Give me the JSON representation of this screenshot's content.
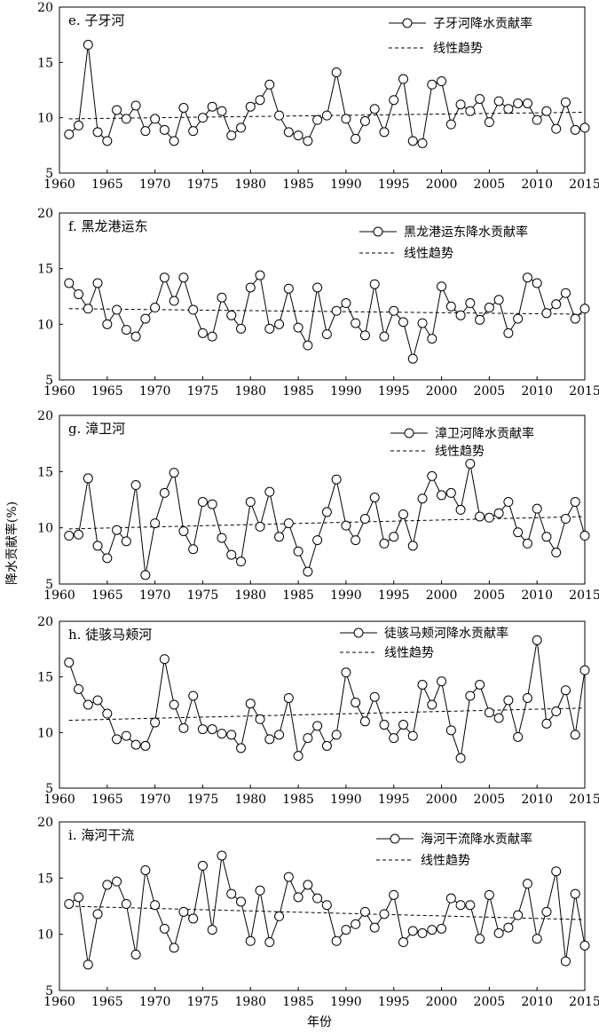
{
  "figure": {
    "ylabel": "降水贡献率(%)",
    "xlabel": "年份"
  },
  "chart_data": [
    {
      "type": "line",
      "title": "e. 子牙河",
      "xlim": [
        1960,
        2015
      ],
      "ylim": [
        5,
        20
      ],
      "xticks": [
        1960,
        1965,
        1970,
        1975,
        1980,
        1985,
        1990,
        1995,
        2000,
        2005,
        2010,
        2015
      ],
      "yticks": [
        5,
        10,
        15,
        20
      ],
      "series": [
        {
          "name": "子牙河降水贡献率",
          "x": [
            1961,
            1962,
            1963,
            1964,
            1965,
            1966,
            1967,
            1968,
            1969,
            1970,
            1971,
            1972,
            1973,
            1974,
            1975,
            1976,
            1977,
            1978,
            1979,
            1980,
            1981,
            1982,
            1983,
            1984,
            1985,
            1986,
            1987,
            1988,
            1989,
            1990,
            1991,
            1992,
            1993,
            1994,
            1995,
            1996,
            1997,
            1998,
            1999,
            2000,
            2001,
            2002,
            2003,
            2004,
            2005,
            2006,
            2007,
            2008,
            2009,
            2010,
            2011,
            2012,
            2013,
            2014,
            2015
          ],
          "values": [
            8.5,
            9.3,
            16.6,
            8.7,
            7.9,
            10.7,
            9.9,
            11.1,
            8.8,
            9.9,
            8.9,
            7.9,
            10.9,
            8.8,
            10.0,
            11.0,
            10.6,
            8.4,
            9.1,
            11.0,
            11.6,
            13.0,
            10.2,
            8.7,
            8.4,
            7.9,
            9.8,
            10.2,
            14.1,
            9.9,
            8.1,
            9.7,
            10.8,
            8.7,
            11.6,
            13.5,
            7.9,
            7.7,
            13.0,
            13.3,
            9.4,
            11.2,
            10.6,
            11.7,
            9.6,
            11.5,
            10.8,
            11.3,
            11.3,
            9.8,
            10.6,
            9.0,
            11.4,
            8.9,
            9.1
          ]
        },
        {
          "name": "线性趋势",
          "x": [
            1961,
            2015
          ],
          "values": [
            9.9,
            10.5
          ]
        }
      ]
    },
    {
      "type": "line",
      "title": "f. 黑龙港运东",
      "xlim": [
        1960,
        2015
      ],
      "ylim": [
        5,
        20
      ],
      "xticks": [
        1960,
        1965,
        1970,
        1975,
        1980,
        1985,
        1990,
        1995,
        2000,
        2005,
        2010,
        2015
      ],
      "yticks": [
        5,
        10,
        15,
        20
      ],
      "series": [
        {
          "name": "黑龙港运东降水贡献率",
          "x": [
            1961,
            1962,
            1963,
            1964,
            1965,
            1966,
            1967,
            1968,
            1969,
            1970,
            1971,
            1972,
            1973,
            1974,
            1975,
            1976,
            1977,
            1978,
            1979,
            1980,
            1981,
            1982,
            1983,
            1984,
            1985,
            1986,
            1987,
            1988,
            1989,
            1990,
            1991,
            1992,
            1993,
            1994,
            1995,
            1996,
            1997,
            1998,
            1999,
            2000,
            2001,
            2002,
            2003,
            2004,
            2005,
            2006,
            2007,
            2008,
            2009,
            2010,
            2011,
            2012,
            2013,
            2014,
            2015
          ],
          "values": [
            13.7,
            12.7,
            11.4,
            13.7,
            10.0,
            11.3,
            9.5,
            8.9,
            10.5,
            11.5,
            14.2,
            12.1,
            14.2,
            11.3,
            9.2,
            8.9,
            12.4,
            10.8,
            9.6,
            13.3,
            14.4,
            9.6,
            10.0,
            13.2,
            9.7,
            8.1,
            13.3,
            9.1,
            11.2,
            11.9,
            10.1,
            9.0,
            13.6,
            8.9,
            11.2,
            10.2,
            6.9,
            10.1,
            8.7,
            13.4,
            11.6,
            10.8,
            11.9,
            10.4,
            11.5,
            12.2,
            9.2,
            10.5,
            14.2,
            13.7,
            11.0,
            11.8,
            12.8,
            10.5,
            11.4
          ]
        },
        {
          "name": "线性趋势",
          "x": [
            1961,
            2015
          ],
          "values": [
            11.4,
            10.9
          ]
        }
      ]
    },
    {
      "type": "line",
      "title": "g. 漳卫河",
      "xlim": [
        1960,
        2015
      ],
      "ylim": [
        5,
        20
      ],
      "xticks": [
        1960,
        1965,
        1970,
        1975,
        1980,
        1985,
        1990,
        1995,
        2000,
        2005,
        2010,
        2015
      ],
      "yticks": [
        5,
        10,
        15,
        20
      ],
      "series": [
        {
          "name": "漳卫河降水贡献率",
          "x": [
            1961,
            1962,
            1963,
            1964,
            1965,
            1966,
            1967,
            1968,
            1969,
            1970,
            1971,
            1972,
            1973,
            1974,
            1975,
            1976,
            1977,
            1978,
            1979,
            1980,
            1981,
            1982,
            1983,
            1984,
            1985,
            1986,
            1987,
            1988,
            1989,
            1990,
            1991,
            1992,
            1993,
            1994,
            1995,
            1996,
            1997,
            1998,
            1999,
            2000,
            2001,
            2002,
            2003,
            2004,
            2005,
            2006,
            2007,
            2008,
            2009,
            2010,
            2011,
            2012,
            2013,
            2014,
            2015
          ],
          "values": [
            9.3,
            9.4,
            14.4,
            8.4,
            7.3,
            9.8,
            8.8,
            13.8,
            5.8,
            10.4,
            13.1,
            14.9,
            9.7,
            8.1,
            12.3,
            12.1,
            9.1,
            7.6,
            7.0,
            12.3,
            10.1,
            13.2,
            9.2,
            10.4,
            7.9,
            6.1,
            8.9,
            11.4,
            14.3,
            10.2,
            8.9,
            10.8,
            12.7,
            8.6,
            9.2,
            11.2,
            8.4,
            12.6,
            14.6,
            12.9,
            13.1,
            11.6,
            15.7,
            11.0,
            10.9,
            11.3,
            12.3,
            9.6,
            8.6,
            11.7,
            9.2,
            7.8,
            10.8,
            12.3,
            9.3
          ]
        },
        {
          "name": "线性趋势",
          "x": [
            1961,
            2015
          ],
          "values": [
            9.9,
            11.0
          ]
        }
      ]
    },
    {
      "type": "line",
      "title": "h. 徒骇马颊河",
      "xlim": [
        1960,
        2015
      ],
      "ylim": [
        5,
        20
      ],
      "xticks": [
        1960,
        1965,
        1970,
        1975,
        1980,
        1985,
        1990,
        1995,
        2000,
        2005,
        2010,
        2015
      ],
      "yticks": [
        5,
        10,
        15,
        20
      ],
      "series": [
        {
          "name": "徒骇马颊河降水贡献率",
          "x": [
            1961,
            1962,
            1963,
            1964,
            1965,
            1966,
            1967,
            1968,
            1969,
            1970,
            1971,
            1972,
            1973,
            1974,
            1975,
            1976,
            1977,
            1978,
            1979,
            1980,
            1981,
            1982,
            1983,
            1984,
            1985,
            1986,
            1987,
            1988,
            1989,
            1990,
            1991,
            1992,
            1993,
            1994,
            1995,
            1996,
            1997,
            1998,
            1999,
            2000,
            2001,
            2002,
            2003,
            2004,
            2005,
            2006,
            2007,
            2008,
            2009,
            2010,
            2011,
            2012,
            2013,
            2014,
            2015
          ],
          "values": [
            16.3,
            13.9,
            12.5,
            12.9,
            11.7,
            9.4,
            9.7,
            8.9,
            8.8,
            10.9,
            16.6,
            12.5,
            10.4,
            13.3,
            10.3,
            10.3,
            9.9,
            9.8,
            8.6,
            12.6,
            11.2,
            9.4,
            9.8,
            13.1,
            7.9,
            9.5,
            10.6,
            8.8,
            9.8,
            15.4,
            12.7,
            11.0,
            13.2,
            10.7,
            9.5,
            10.7,
            9.7,
            14.3,
            12.5,
            14.6,
            10.2,
            7.7,
            13.3,
            14.3,
            11.8,
            11.3,
            12.9,
            9.6,
            13.1,
            18.3,
            10.8,
            11.9,
            13.8,
            9.8,
            15.6
          ]
        },
        {
          "name": "线性趋势",
          "x": [
            1961,
            2015
          ],
          "values": [
            11.1,
            12.2
          ]
        }
      ]
    },
    {
      "type": "line",
      "title": "i. 海河干流",
      "xlim": [
        1960,
        2015
      ],
      "ylim": [
        5,
        20
      ],
      "xticks": [
        1960,
        1965,
        1970,
        1975,
        1980,
        1985,
        1990,
        1995,
        2000,
        2005,
        2010,
        2015
      ],
      "yticks": [
        5,
        10,
        15,
        20
      ],
      "series": [
        {
          "name": "海河干流降水贡献率",
          "x": [
            1961,
            1962,
            1963,
            1964,
            1965,
            1966,
            1967,
            1968,
            1969,
            1970,
            1971,
            1972,
            1973,
            1974,
            1975,
            1976,
            1977,
            1978,
            1979,
            1980,
            1981,
            1982,
            1983,
            1984,
            1985,
            1986,
            1987,
            1988,
            1989,
            1990,
            1991,
            1992,
            1993,
            1994,
            1995,
            1996,
            1997,
            1998,
            1999,
            2000,
            2001,
            2002,
            2003,
            2004,
            2005,
            2006,
            2007,
            2008,
            2009,
            2010,
            2011,
            2012,
            2013,
            2014,
            2015
          ],
          "values": [
            12.7,
            13.3,
            7.3,
            11.8,
            14.4,
            14.7,
            12.7,
            8.2,
            15.7,
            12.6,
            10.5,
            8.8,
            12.0,
            11.4,
            16.1,
            10.4,
            17.0,
            13.6,
            12.9,
            9.4,
            13.9,
            9.3,
            11.6,
            15.1,
            13.3,
            14.4,
            13.2,
            12.6,
            9.4,
            10.4,
            10.9,
            12.0,
            10.6,
            11.8,
            13.5,
            9.3,
            10.3,
            10.1,
            10.4,
            10.5,
            13.2,
            12.6,
            12.6,
            9.6,
            13.5,
            10.1,
            10.6,
            11.7,
            14.5,
            9.6,
            12.0,
            15.6,
            7.6,
            13.6,
            9.0
          ]
        },
        {
          "name": "线性趋势",
          "x": [
            1961,
            2015
          ],
          "values": [
            12.5,
            11.3
          ]
        }
      ]
    }
  ]
}
